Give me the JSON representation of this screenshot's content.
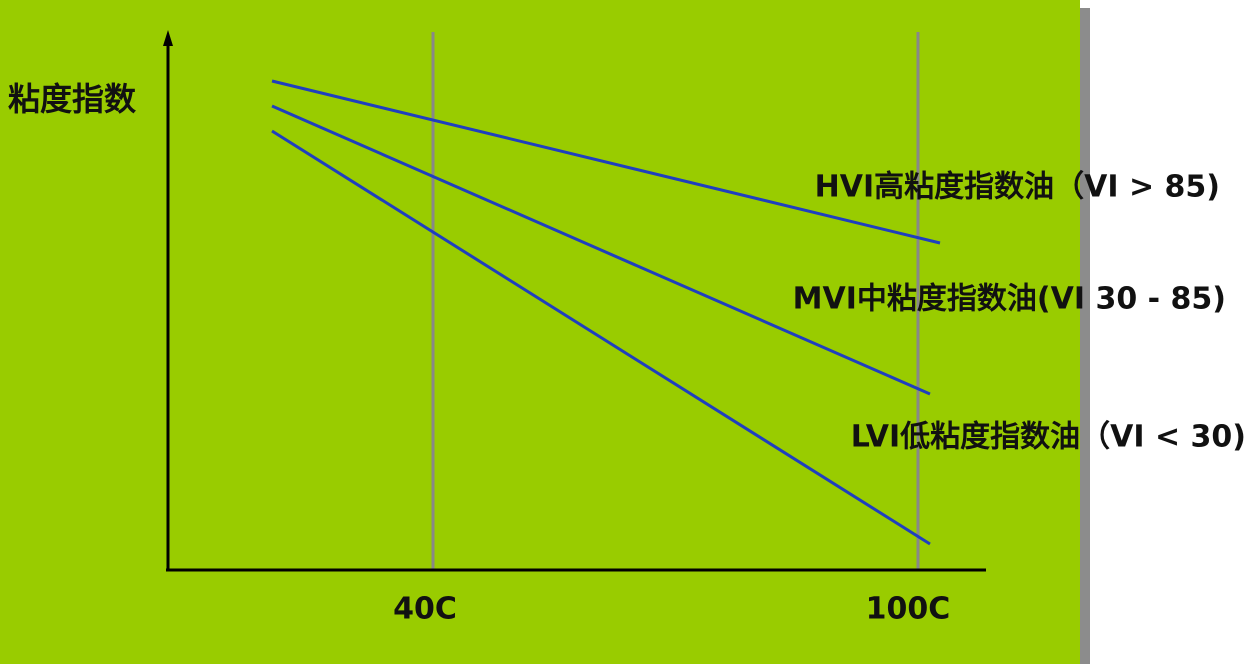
{
  "axis": {
    "y_label": "粘度指数",
    "x_ticks": [
      "40C",
      "100C"
    ]
  },
  "lines": [
    {
      "label": "HVI高粘度指数油（VI > 85)"
    },
    {
      "label": "MVI中粘度指数油(VI 30 - 85)"
    },
    {
      "label": "LVI低粘度指数油（VI < 30)"
    }
  ]
}
